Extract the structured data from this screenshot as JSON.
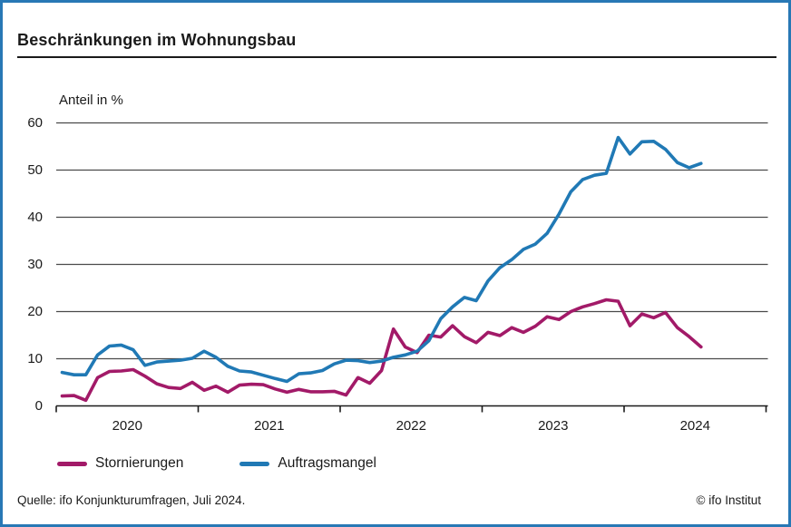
{
  "header": {
    "title": "Beschränkungen im Wohnungsbau"
  },
  "footer": {
    "source": "Quelle: ifo Konjunkturumfragen, Juli 2024.",
    "copyright": "© ifo Institut"
  },
  "colors": {
    "frame_border": "#2878b5",
    "text": "#1a1a1a",
    "gridline": "#4a4a4a",
    "axis": "#1a1a1a"
  },
  "chart_data": {
    "type": "line",
    "title": "Beschränkungen im Wohnungsbau",
    "ylabel": "Anteil in %",
    "xlabel": "",
    "x_unit": "month",
    "x_start": "2020-01",
    "x_end": "2024-07",
    "x_tick_labels": [
      "2020",
      "2021",
      "2022",
      "2023",
      "2024"
    ],
    "y_ticks": [
      0,
      10,
      20,
      30,
      40,
      50,
      60
    ],
    "ylim": [
      0,
      60
    ],
    "grid": "horizontal",
    "legend_position": "bottom",
    "series": [
      {
        "name": "Stornierungen",
        "color": "#a21a68",
        "values": [
          2.1,
          2.2,
          1.2,
          6.0,
          7.3,
          7.4,
          7.7,
          6.3,
          4.7,
          3.9,
          3.7,
          5.0,
          3.3,
          4.2,
          2.9,
          4.4,
          4.6,
          4.5,
          3.6,
          2.9,
          3.5,
          3.0,
          3.0,
          3.1,
          2.3,
          6.0,
          4.8,
          7.5,
          16.3,
          12.5,
          11.3,
          15.0,
          14.6,
          17.0,
          14.7,
          13.4,
          15.6,
          14.9,
          16.6,
          15.6,
          16.9,
          18.9,
          18.3,
          20.0,
          21.0,
          21.7,
          22.5,
          22.2,
          17.0,
          19.5,
          18.7,
          19.8,
          16.6,
          14.7,
          12.5
        ]
      },
      {
        "name": "Auftragsmangel",
        "color": "#2079b5",
        "values": [
          7.1,
          6.6,
          6.6,
          10.8,
          12.7,
          12.9,
          11.9,
          8.6,
          9.3,
          9.5,
          9.7,
          10.1,
          11.6,
          10.3,
          8.4,
          7.4,
          7.2,
          6.5,
          5.8,
          5.2,
          6.8,
          7.0,
          7.5,
          8.9,
          9.7,
          9.6,
          9.2,
          9.5,
          10.3,
          10.8,
          11.6,
          13.8,
          18.5,
          21.0,
          23.0,
          22.3,
          26.5,
          29.3,
          31.0,
          33.2,
          34.3,
          36.6,
          40.7,
          45.4,
          48.0,
          48.9,
          49.3,
          56.9,
          53.4,
          56.0,
          56.1,
          54.4,
          51.6,
          50.5,
          51.4
        ]
      }
    ]
  }
}
